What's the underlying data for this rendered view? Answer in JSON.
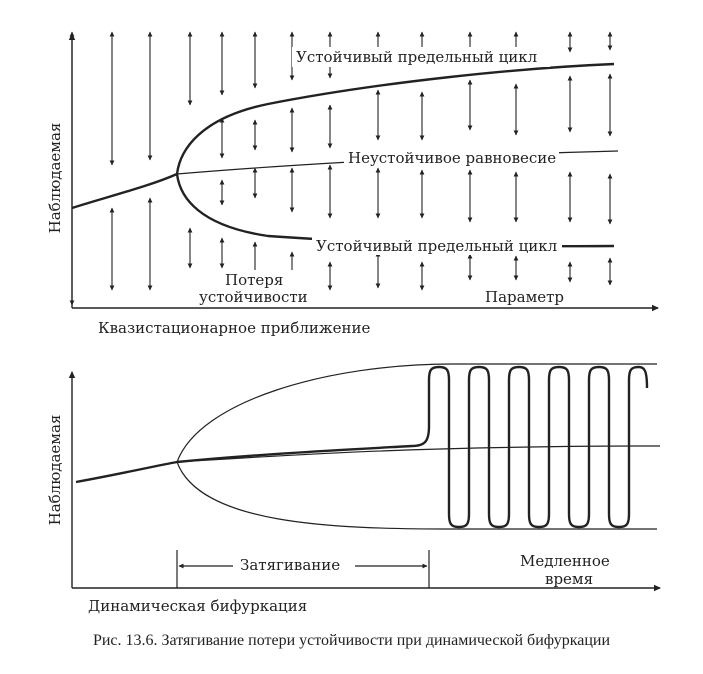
{
  "top": {
    "ylabel": "Наблюдаемая",
    "upper_cycle_label": "Устойчивый предельный цикл",
    "unstable_label": "Неустойчивое равновесие",
    "lower_cycle_label": "Устойчивый предельный цикл",
    "loss_label_1": "Потеря",
    "loss_label_2": "устойчивости",
    "param_label": "Параметр",
    "subtitle": "Квазистационарное приближение"
  },
  "bottom": {
    "ylabel": "Наблюдаемая",
    "delay_label": "Затягивание",
    "slow_label_1": "Медленное",
    "slow_label_2": "время",
    "subtitle": "Динамическая бифуркация"
  },
  "caption": "Рис. 13.6. Затягивание потери устойчивости при динамической бифуркации"
}
